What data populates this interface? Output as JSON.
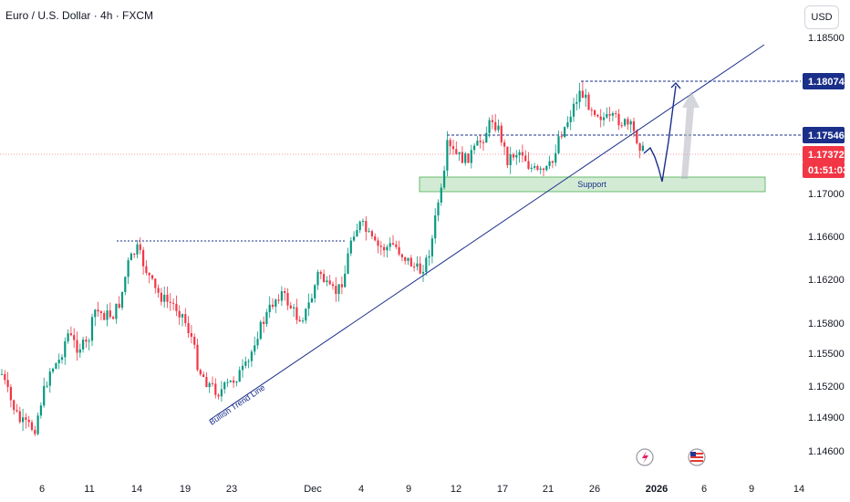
{
  "header": {
    "title": "Euro / U.S. Dollar · 4h · FXCM",
    "currency": "USD"
  },
  "chart_data": {
    "type": "candlestick",
    "y_ticks": [
      "1.18500",
      "1.17000",
      "1.16600",
      "1.16200",
      "1.15800",
      "1.15500",
      "1.15200",
      "1.14900",
      "1.14600"
    ],
    "x_ticks": [
      "6",
      "11",
      "14",
      "19",
      "23",
      "Dec",
      "4",
      "9",
      "12",
      "17",
      "21",
      "26",
      "2026",
      "6",
      "9",
      "14"
    ],
    "price_labels": [
      {
        "value": "1.18074",
        "color": "#1a2f8a"
      },
      {
        "value": "1.17546",
        "color": "#1a2f8a"
      },
      {
        "value": "1.17372",
        "color": "#f23645"
      },
      {
        "value": "01:51:03",
        "color": "#f23645"
      }
    ],
    "annotations": {
      "support": "Support",
      "trend_line": "Bullish Trend Line"
    },
    "colors": {
      "up": "#089981",
      "down": "#f23645",
      "drawing": "#1a2f8a",
      "zone": "#c8e6c9"
    }
  }
}
